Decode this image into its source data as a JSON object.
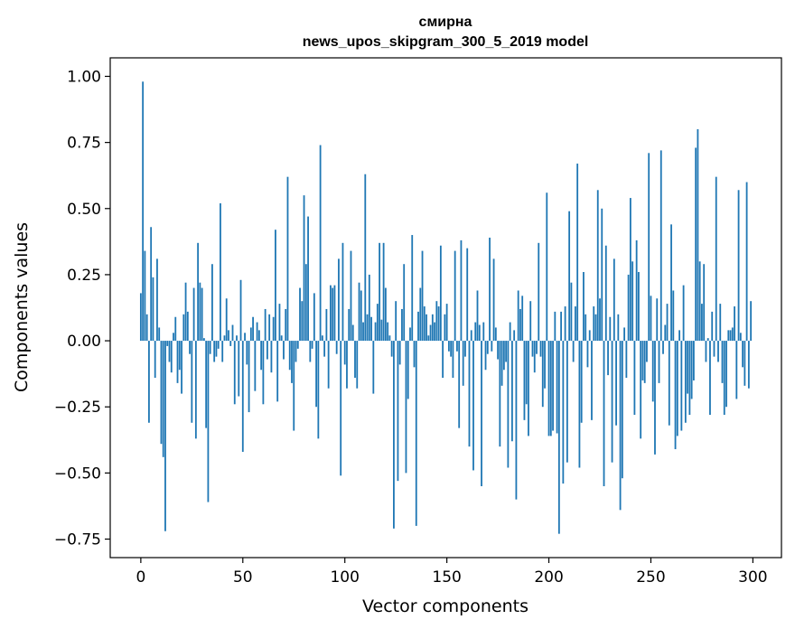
{
  "chart_data": {
    "type": "bar",
    "title": "смирна",
    "subtitle": "news_upos_skipgram_300_5_2019 model",
    "xlabel": "Vector components",
    "ylabel": "Components values",
    "xlim": [
      -15,
      314
    ],
    "ylim": [
      -0.82,
      1.07
    ],
    "xticks": [
      0,
      50,
      100,
      150,
      200,
      250,
      300
    ],
    "xtick_labels": [
      "0",
      "50",
      "100",
      "150",
      "200",
      "250",
      "300"
    ],
    "yticks": [
      -0.75,
      -0.5,
      -0.25,
      0.0,
      0.25,
      0.5,
      0.75,
      1.0
    ],
    "ytick_labels": [
      "−0.75",
      "−0.50",
      "−0.25",
      "0.00",
      "0.25",
      "0.50",
      "0.75",
      "1.00"
    ],
    "grid": false,
    "bar_color": "#1f77b4",
    "x": "0..299",
    "values": [
      0.18,
      0.98,
      0.34,
      0.1,
      -0.31,
      0.43,
      0.24,
      -0.14,
      0.31,
      0.05,
      -0.39,
      -0.44,
      -0.72,
      -0.02,
      -0.08,
      -0.12,
      0.03,
      0.09,
      -0.16,
      -0.11,
      -0.2,
      0.1,
      0.22,
      0.11,
      -0.05,
      -0.31,
      0.2,
      -0.37,
      0.37,
      0.22,
      0.2,
      0.01,
      -0.33,
      -0.61,
      -0.05,
      0.29,
      -0.08,
      -0.06,
      -0.03,
      0.52,
      -0.08,
      0.02,
      0.16,
      0.04,
      -0.02,
      0.06,
      -0.24,
      0.02,
      -0.21,
      0.23,
      -0.42,
      0.03,
      -0.09,
      -0.27,
      0.05,
      0.09,
      -0.19,
      0.07,
      0.04,
      -0.11,
      -0.24,
      0.12,
      -0.07,
      0.1,
      -0.12,
      0.09,
      0.42,
      -0.23,
      0.14,
      0.02,
      -0.07,
      0.12,
      0.62,
      -0.11,
      -0.16,
      -0.34,
      -0.08,
      -0.03,
      0.2,
      0.15,
      0.55,
      0.29,
      0.47,
      -0.08,
      -0.03,
      0.18,
      -0.25,
      -0.37,
      0.74,
      0.02,
      -0.06,
      0.12,
      -0.18,
      0.21,
      0.2,
      0.21,
      -0.05,
      0.31,
      -0.51,
      0.37,
      -0.09,
      -0.18,
      0.12,
      0.34,
      0.06,
      -0.14,
      -0.18,
      0.22,
      0.19,
      0.07,
      0.63,
      0.1,
      0.25,
      0.09,
      -0.2,
      0.07,
      0.14,
      0.37,
      0.08,
      0.37,
      0.2,
      0.07,
      0.02,
      -0.06,
      -0.71,
      0.15,
      -0.53,
      -0.09,
      0.12,
      0.29,
      -0.5,
      -0.22,
      0.05,
      0.4,
      -0.1,
      -0.7,
      0.11,
      0.2,
      0.34,
      0.13,
      0.1,
      0.02,
      0.06,
      0.1,
      0.07,
      0.15,
      0.13,
      0.36,
      -0.14,
      0.1,
      0.14,
      -0.04,
      -0.06,
      -0.14,
      0.34,
      -0.04,
      -0.33,
      0.38,
      -0.17,
      -0.06,
      0.35,
      -0.4,
      0.04,
      -0.49,
      0.07,
      0.19,
      0.06,
      -0.55,
      0.07,
      -0.11,
      -0.05,
      0.39,
      -0.04,
      0.31,
      0.05,
      -0.07,
      -0.4,
      -0.17,
      -0.11,
      -0.08,
      -0.48,
      0.07,
      -0.38,
      0.04,
      -0.6,
      0.19,
      0.12,
      0.17,
      -0.3,
      -0.24,
      -0.36,
      0.15,
      -0.06,
      -0.12,
      -0.05,
      0.37,
      -0.06,
      -0.25,
      -0.18,
      0.56,
      -0.36,
      -0.36,
      -0.34,
      0.11,
      -0.35,
      -0.73,
      0.11,
      -0.54,
      0.13,
      -0.46,
      0.49,
      0.22,
      -0.08,
      0.13,
      0.67,
      -0.48,
      -0.31,
      0.26,
      0.1,
      -0.1,
      0.04,
      -0.3,
      0.13,
      0.1,
      0.57,
      0.16,
      0.5,
      -0.55,
      0.36,
      -0.13,
      0.09,
      -0.46,
      0.31,
      -0.32,
      0.1,
      -0.64,
      -0.52,
      0.05,
      -0.14,
      0.25,
      0.54,
      0.3,
      -0.28,
      0.38,
      0.26,
      -0.37,
      -0.15,
      -0.16,
      -0.08,
      0.71,
      0.17,
      -0.23,
      -0.43,
      0.16,
      -0.16,
      0.72,
      -0.05,
      0.06,
      0.14,
      -0.32,
      0.44,
      0.19,
      -0.41,
      -0.36,
      0.04,
      -0.34,
      0.21,
      -0.31,
      -0.2,
      -0.28,
      -0.22,
      -0.15,
      0.73,
      0.8,
      0.3,
      0.14,
      0.29,
      -0.08,
      0.01,
      -0.28,
      0.11,
      -0.06,
      0.62,
      -0.08,
      0.14,
      -0.16,
      -0.28,
      -0.25,
      0.04,
      0.04,
      0.05,
      0.13,
      -0.22,
      0.57,
      0.03,
      -0.1,
      -0.17,
      0.6,
      -0.18,
      0.15
    ]
  }
}
